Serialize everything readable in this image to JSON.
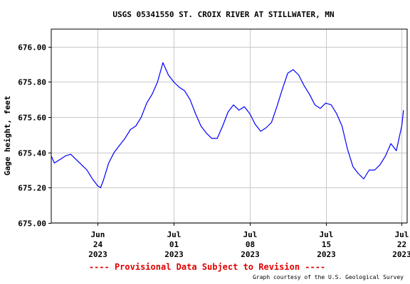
{
  "chart_data": {
    "type": "line",
    "title": "USGS 05341550 ST. CROIX RIVER AT STILLWATER, MN",
    "ylabel": "Gage height, feet",
    "xlabel": "",
    "ylim": [
      675.0,
      676.1
    ],
    "xlim": [
      "2023-06-19T17:00",
      "2023-07-22T12:00"
    ],
    "yticks": [
      {
        "value": 675.0,
        "label": "675.00"
      },
      {
        "value": 675.2,
        "label": "675.20"
      },
      {
        "value": 675.4,
        "label": "675.40"
      },
      {
        "value": 675.6,
        "label": "675.60"
      },
      {
        "value": 675.8,
        "label": "675.80"
      },
      {
        "value": 676.0,
        "label": "676.00"
      }
    ],
    "xticks": [
      {
        "date": "2023-06-24",
        "label": [
          "Jun",
          "24",
          "2023"
        ]
      },
      {
        "date": "2023-07-01",
        "label": [
          "Jul",
          "01",
          "2023"
        ]
      },
      {
        "date": "2023-07-08",
        "label": [
          "Jul",
          "08",
          "2023"
        ]
      },
      {
        "date": "2023-07-15",
        "label": [
          "Jul",
          "15",
          "2023"
        ]
      },
      {
        "date": "2023-07-22",
        "label": [
          "Jul",
          "22",
          "2023"
        ]
      }
    ],
    "grid": true,
    "line_color": "#0000ff",
    "series": [
      {
        "x": [
          "2023-06-19T17:00",
          "2023-06-20T00:00",
          "2023-06-20T12:00",
          "2023-06-21T00:00",
          "2023-06-21T12:00",
          "2023-06-22T00:00",
          "2023-06-22T12:00",
          "2023-06-23T00:00",
          "2023-06-23T12:00",
          "2023-06-24T00:00",
          "2023-06-24T06:00",
          "2023-06-24T12:00",
          "2023-06-25T00:00",
          "2023-06-25T12:00",
          "2023-06-26T00:00",
          "2023-06-26T12:00",
          "2023-06-27T00:00",
          "2023-06-27T12:00",
          "2023-06-28T00:00",
          "2023-06-28T12:00",
          "2023-06-29T00:00",
          "2023-06-29T12:00",
          "2023-06-30T00:00",
          "2023-06-30T12:00",
          "2023-07-01T00:00",
          "2023-07-01T12:00",
          "2023-07-02T00:00",
          "2023-07-02T12:00",
          "2023-07-03T00:00",
          "2023-07-03T12:00",
          "2023-07-04T00:00",
          "2023-07-04T12:00",
          "2023-07-05T00:00",
          "2023-07-05T12:00",
          "2023-07-06T00:00",
          "2023-07-06T12:00",
          "2023-07-07T00:00",
          "2023-07-07T12:00",
          "2023-07-08T00:00",
          "2023-07-08T12:00",
          "2023-07-09T00:00",
          "2023-07-09T12:00",
          "2023-07-10T00:00",
          "2023-07-10T12:00",
          "2023-07-11T00:00",
          "2023-07-11T12:00",
          "2023-07-12T00:00",
          "2023-07-12T12:00",
          "2023-07-13T00:00",
          "2023-07-13T12:00",
          "2023-07-14T00:00",
          "2023-07-14T12:00",
          "2023-07-15T00:00",
          "2023-07-15T12:00",
          "2023-07-16T00:00",
          "2023-07-16T12:00",
          "2023-07-17T00:00",
          "2023-07-17T12:00",
          "2023-07-18T00:00",
          "2023-07-18T12:00",
          "2023-07-19T00:00",
          "2023-07-19T12:00",
          "2023-07-20T00:00",
          "2023-07-20T12:00",
          "2023-07-21T00:00",
          "2023-07-21T12:00",
          "2023-07-22T00:00",
          "2023-07-22T04:00"
        ],
        "y": [
          675.38,
          675.34,
          675.36,
          675.38,
          675.39,
          675.36,
          675.33,
          675.3,
          675.25,
          675.21,
          675.2,
          675.24,
          675.34,
          675.4,
          675.44,
          675.48,
          675.53,
          675.55,
          675.6,
          675.68,
          675.73,
          675.8,
          675.91,
          675.84,
          675.8,
          675.77,
          675.75,
          675.7,
          675.62,
          675.55,
          675.51,
          675.48,
          675.48,
          675.55,
          675.63,
          675.67,
          675.64,
          675.66,
          675.62,
          675.56,
          675.52,
          675.54,
          675.57,
          675.66,
          675.76,
          675.85,
          675.87,
          675.84,
          675.78,
          675.73,
          675.67,
          675.65,
          675.68,
          675.67,
          675.62,
          675.55,
          675.42,
          675.32,
          675.28,
          675.25,
          675.3,
          675.3,
          675.33,
          675.38,
          675.45,
          675.41,
          675.55,
          675.64
        ]
      }
    ]
  },
  "provisional": "---- Provisional Data Subject to Revision ----",
  "credit": "Graph courtesy of the U.S. Geological Survey"
}
